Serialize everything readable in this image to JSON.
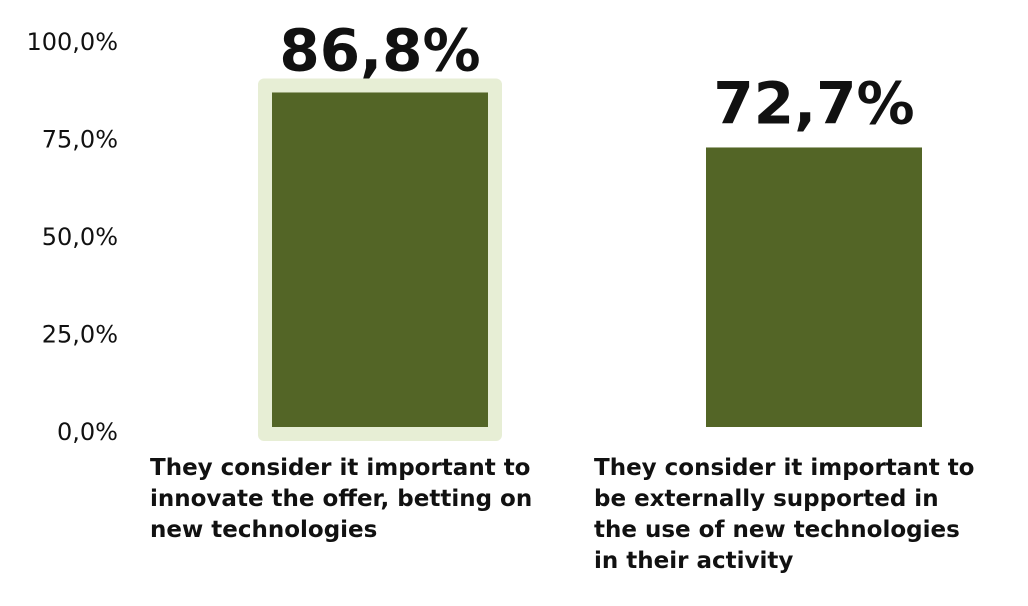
{
  "chart_data": {
    "type": "bar",
    "categories": [
      "They consider it important to innovate the offer, betting on new technologies",
      "They consider it important to be externally supported in the use of new technologies in their activity"
    ],
    "category_lines": [
      [
        "They consider it important to",
        "innovate the offer, betting on",
        "new technologies"
      ],
      [
        "They consider it important to",
        "be externally supported in",
        "the use of new technologies",
        "in their activity"
      ]
    ],
    "values": [
      86.8,
      72.7
    ],
    "value_labels": [
      "86,8%",
      "72,7%"
    ],
    "y_ticks": [
      0,
      25,
      50,
      75,
      100
    ],
    "y_tick_labels": [
      "0,0%",
      "25,0%",
      "50,0%",
      "75,0%",
      "100,0%"
    ],
    "ylim": [
      0,
      100
    ],
    "highlighted_index": 0,
    "grid": false,
    "legend": "none"
  },
  "colors": {
    "bar": "#536526",
    "highlight": "#e7eed5",
    "text": "#111111"
  }
}
